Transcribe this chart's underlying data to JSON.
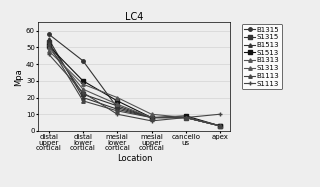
{
  "title": "LC4",
  "xlabel": "Location",
  "ylabel": "Mpa",
  "x_labels": [
    "distal\nupper\ncortical",
    "distal\nlower\ncortical",
    "mesial\nlower\ncortical",
    "mesial\nupper\ncortical",
    "cancello\nus",
    "apex"
  ],
  "ylim": [
    0,
    65
  ],
  "yticks": [
    0,
    10,
    20,
    30,
    40,
    50,
    60
  ],
  "series": [
    {
      "label": "B1315",
      "values": [
        58,
        42,
        14,
        8,
        8,
        3
      ],
      "color": "#333333",
      "marker": "o",
      "ms": 2.5,
      "ls": "-",
      "lw": 0.8
    },
    {
      "label": "S1315",
      "values": [
        53,
        22,
        15,
        8,
        8,
        3
      ],
      "color": "#333333",
      "marker": "s",
      "ms": 2.5,
      "ls": "-",
      "lw": 0.8
    },
    {
      "label": "B1513",
      "values": [
        55,
        20,
        13,
        8,
        8,
        3
      ],
      "color": "#333333",
      "marker": "^",
      "ms": 2.5,
      "ls": "-",
      "lw": 0.8
    },
    {
      "label": "S1513",
      "values": [
        51,
        30,
        18,
        8,
        9,
        3
      ],
      "color": "#111111",
      "marker": "s",
      "ms": 3.5,
      "ls": "-",
      "lw": 0.8
    },
    {
      "label": "B1313",
      "values": [
        50,
        25,
        16,
        8,
        8,
        3
      ],
      "color": "#555555",
      "marker": "^",
      "ms": 2.5,
      "ls": "-",
      "lw": 0.8
    },
    {
      "label": "S1313",
      "values": [
        48,
        28,
        20,
        10,
        8,
        3
      ],
      "color": "#555555",
      "marker": "^",
      "ms": 2.5,
      "ls": "-",
      "lw": 0.8
    },
    {
      "label": "B1113",
      "values": [
        52,
        18,
        12,
        8,
        8,
        3
      ],
      "color": "#444444",
      "marker": "^",
      "ms": 2.5,
      "ls": "-",
      "lw": 0.8
    },
    {
      "label": "S1113",
      "values": [
        46,
        23,
        10,
        6,
        8,
        10
      ],
      "color": "#444444",
      "marker": "+",
      "ms": 3.0,
      "ls": "-",
      "lw": 0.8
    }
  ],
  "bg_color": "#eeeeee",
  "title_fontsize": 7,
  "axis_label_fontsize": 6,
  "tick_fontsize": 5,
  "legend_fontsize": 5
}
